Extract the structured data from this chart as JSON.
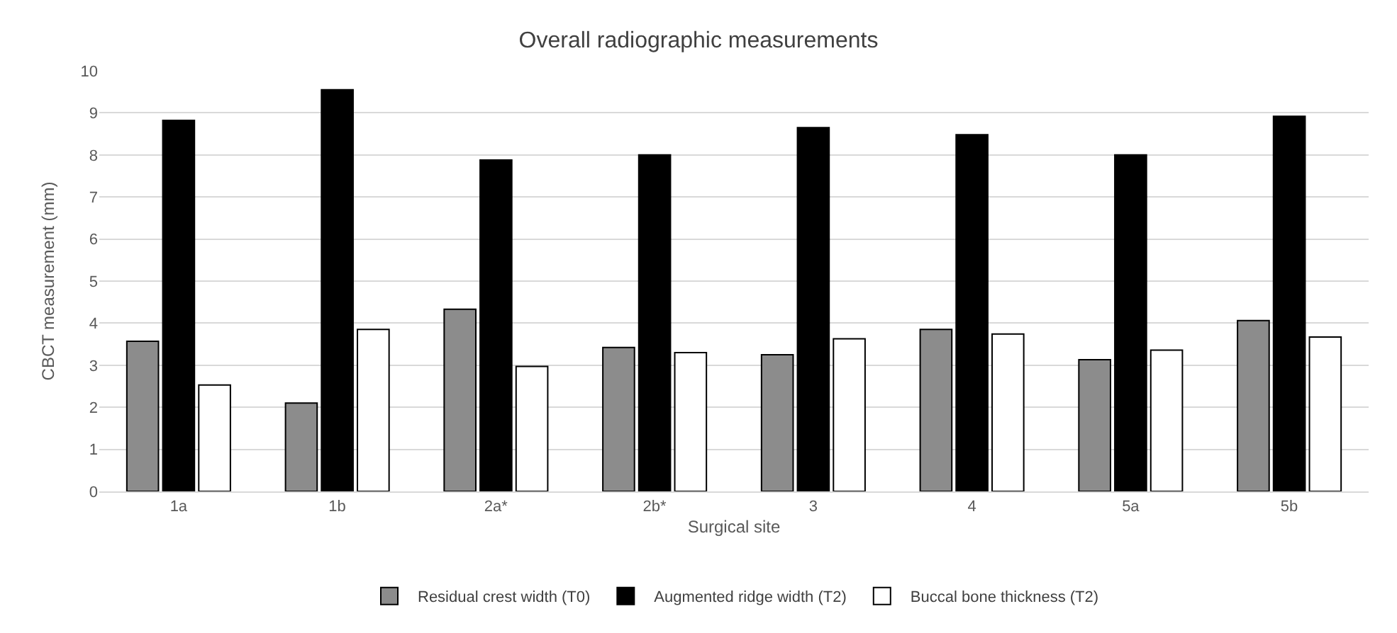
{
  "chart_data": {
    "type": "bar",
    "title": "Overall radiographic measurements",
    "xlabel": "Surgical site",
    "ylabel": "CBCT measurement (mm)",
    "categories": [
      "1a",
      "1b",
      "2a*",
      "2b*",
      "3",
      "4",
      "5a",
      "5b"
    ],
    "series": [
      {
        "name": "Residual crest width (T0)",
        "color": "#8c8c8c",
        "values": [
          3.57,
          2.1,
          4.33,
          3.42,
          3.25,
          3.85,
          3.13,
          4.06
        ]
      },
      {
        "name": "Augmented ridge width (T2)",
        "color": "#000000",
        "values": [
          8.82,
          9.55,
          7.88,
          8.0,
          8.65,
          8.48,
          8.0,
          8.92
        ]
      },
      {
        "name": "Buccal bone thickness (T2)",
        "color": "#ffffff",
        "values": [
          2.53,
          3.85,
          2.97,
          3.3,
          3.63,
          3.74,
          3.36,
          3.67
        ]
      }
    ],
    "ylim": [
      0,
      10
    ],
    "yticks": [
      0,
      1,
      2,
      3,
      4,
      5,
      6,
      7,
      8,
      9,
      10
    ],
    "grid": "y",
    "legend": "bottom"
  }
}
